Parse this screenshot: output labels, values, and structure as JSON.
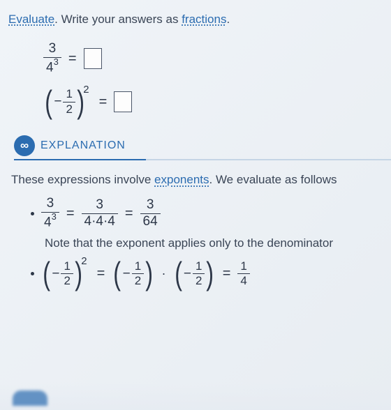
{
  "instruction": {
    "evaluate": "Evaluate",
    "middle": ". Write your answers as ",
    "fractions": "fractions",
    "end": "."
  },
  "problem1": {
    "numerator": "3",
    "denom_base": "4",
    "denom_exp": "3",
    "equals": "="
  },
  "problem2": {
    "sign": "−",
    "frac_num": "1",
    "frac_den": "2",
    "outer_exp": "2",
    "equals": "="
  },
  "section": {
    "icon": "∞",
    "title": "EXPLANATION"
  },
  "explain_intro": {
    "prefix": "These expressions involve ",
    "link": "exponents",
    "suffix": ". We evaluate as follows"
  },
  "step1": {
    "lhs_num": "3",
    "lhs_den_base": "4",
    "lhs_den_exp": "3",
    "eq": "=",
    "mid_num": "3",
    "mid_den": "4·4·4",
    "rhs_num": "3",
    "rhs_den": "64"
  },
  "note1": "Note that the exponent applies only to the denominator",
  "step2": {
    "sign": "−",
    "base_num": "1",
    "base_den": "2",
    "exp": "2",
    "eq": "=",
    "dot": "·",
    "res_num": "1",
    "res_den": "4"
  },
  "colors": {
    "link": "#2b6cb0",
    "text": "#3a4556",
    "math": "#2d3748"
  }
}
